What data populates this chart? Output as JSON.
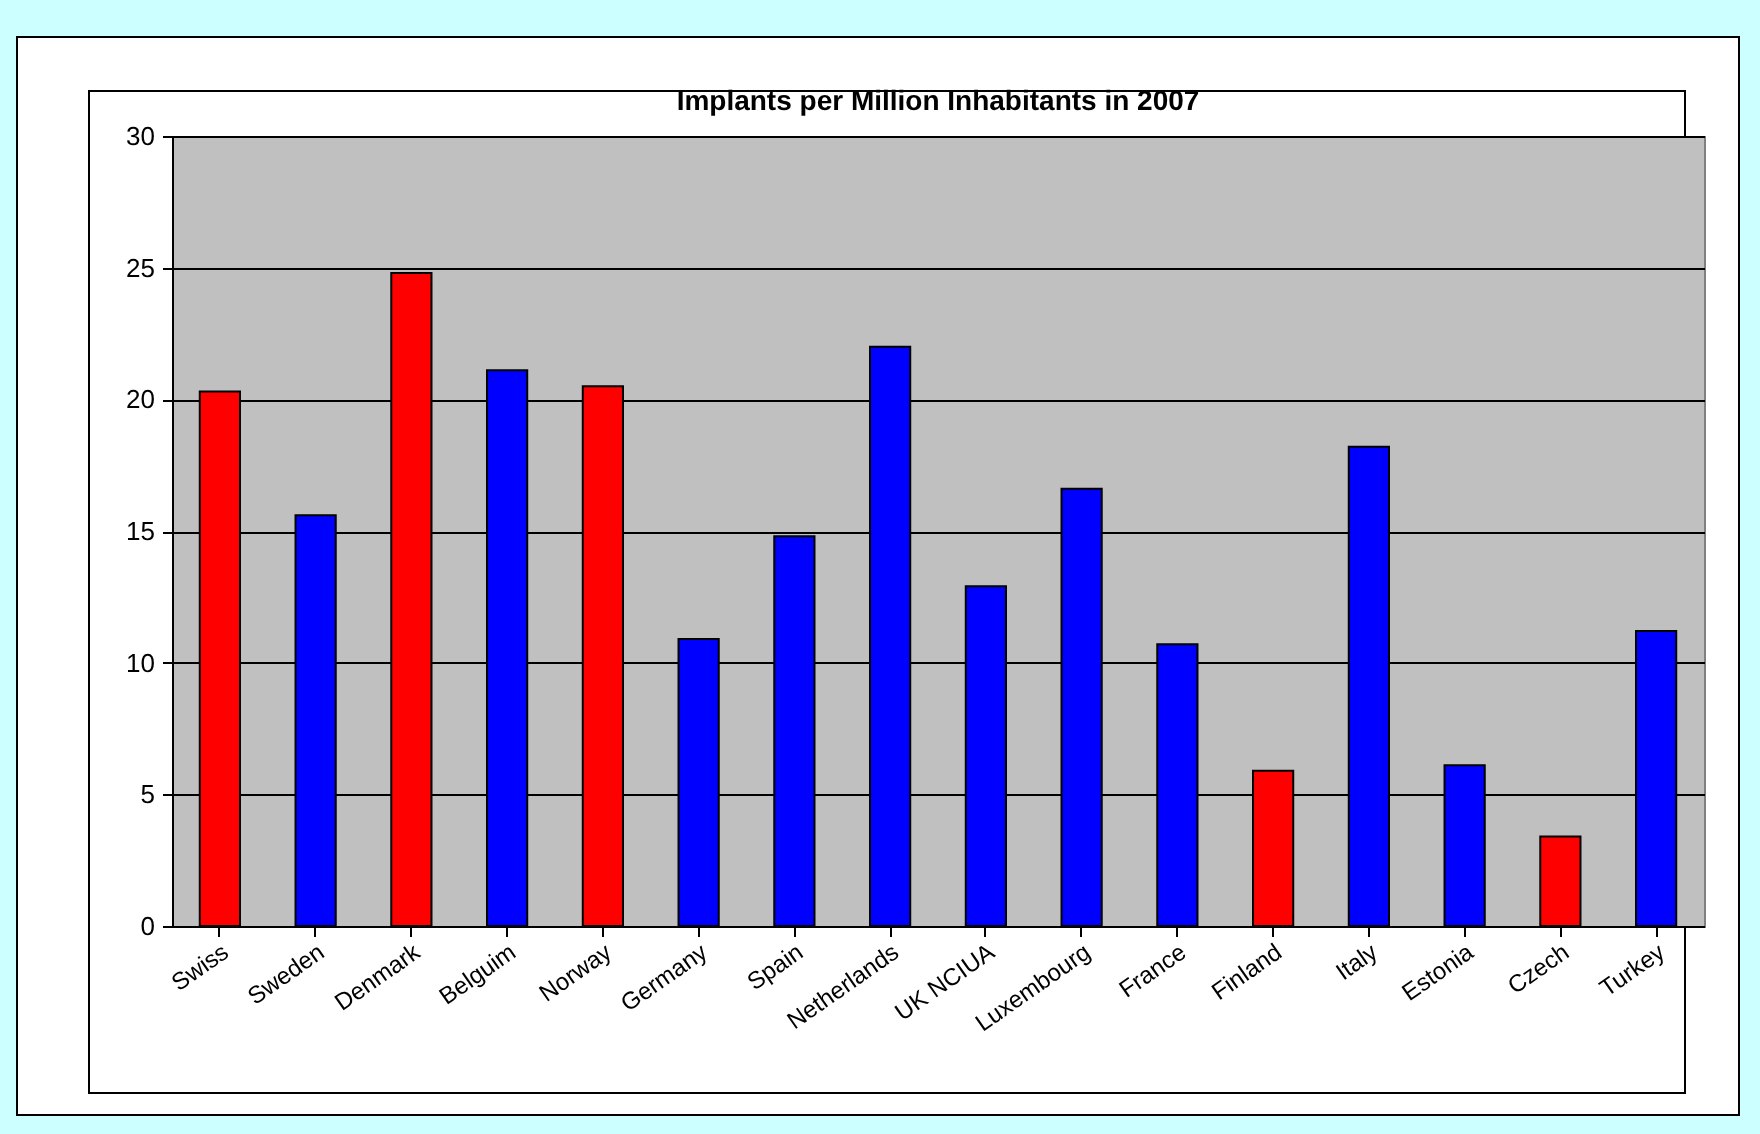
{
  "chart_data": {
    "type": "bar",
    "title": "Implants per Million Inhabitants in 2007",
    "categories": [
      "Swiss",
      "Sweden",
      "Denmark",
      "Belguim",
      "Norway",
      "Germany",
      "Spain",
      "Netherlands",
      "UK NCIUA",
      "Luxembourg",
      "France",
      "Finland",
      "Italy",
      "Estonia",
      "Czech",
      "Turkey"
    ],
    "values": [
      20.3,
      15.6,
      24.8,
      21.1,
      20.5,
      10.9,
      14.8,
      22.0,
      12.9,
      16.6,
      10.7,
      5.9,
      18.2,
      6.1,
      3.4,
      11.2
    ],
    "colors": [
      "#ff0000",
      "#0000ff",
      "#ff0000",
      "#0000ff",
      "#ff0000",
      "#0000ff",
      "#0000ff",
      "#0000ff",
      "#0000ff",
      "#0000ff",
      "#0000ff",
      "#ff0000",
      "#0000ff",
      "#0000ff",
      "#ff0000",
      "#0000ff"
    ],
    "ylim": [
      0,
      30
    ],
    "yticks": [
      0,
      5,
      10,
      15,
      20,
      25,
      30
    ],
    "grid": "y"
  }
}
